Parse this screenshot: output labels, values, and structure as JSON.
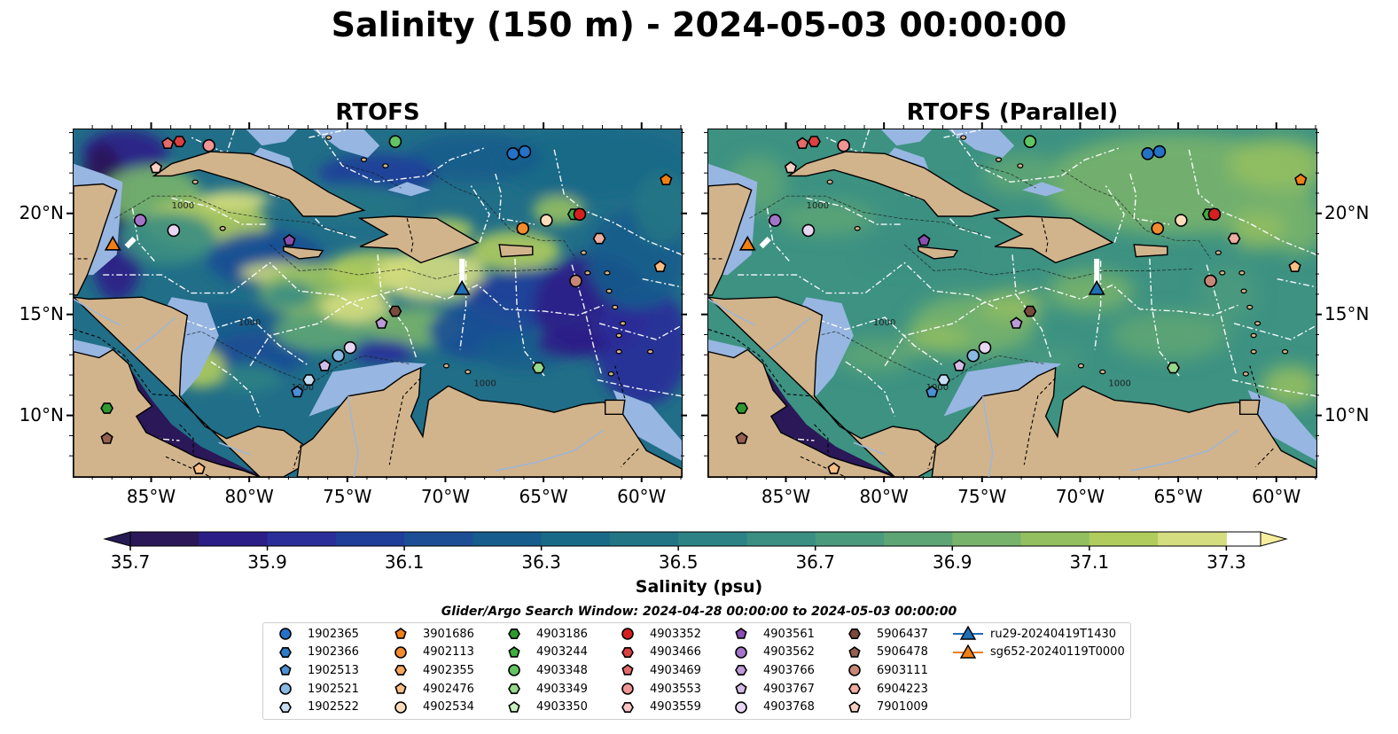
{
  "title": "Salinity (150 m) - 2024-05-03 00:00:00",
  "panels": [
    {
      "title": "RTOFS",
      "variant": "rtofs"
    },
    {
      "title": "RTOFS (Parallel)",
      "variant": "parallel"
    }
  ],
  "map": {
    "lon_range": [
      -89.0,
      -58.0
    ],
    "lat_range": [
      7.0,
      24.2
    ],
    "lon_ticks": [
      "85°W",
      "80°W",
      "75°W",
      "70°W",
      "65°W",
      "60°W"
    ],
    "lat_ticks": [
      "20°N",
      "15°N",
      "10°N"
    ],
    "contour_label": "1000",
    "colors": {
      "ocean_shelf": "#97b6e1",
      "land": "#d2b48c",
      "eez_line": "#ffffff",
      "coast": "#000000"
    }
  },
  "colorbar": {
    "label": "Salinity (psu)",
    "ticks": [
      "35.7",
      "35.9",
      "36.1",
      "36.3",
      "36.5",
      "36.7",
      "36.9",
      "37.1",
      "37.3"
    ],
    "min": 35.7,
    "max": 37.35,
    "step": 0.1,
    "colors": [
      "#2a1858",
      "#2b1e87",
      "#2a2e99",
      "#1f3e9a",
      "#1b4e95",
      "#165c8c",
      "#196a87",
      "#217585",
      "#2c8284",
      "#3a8e82",
      "#4a9a7e",
      "#5ea576",
      "#78b36c",
      "#93bf60",
      "#b0cc5c",
      "#d4dd80"
    ],
    "extend_low_color": "#261b52",
    "extend_high_color": "#f6ee9d"
  },
  "search_window": "Glider/Argo Search Window: 2024-04-28 00:00:00 to 2024-05-03 00:00:00",
  "legend": [
    {
      "id": "1902365",
      "marker": "circle",
      "color": "#2472c8"
    },
    {
      "id": "1902366",
      "marker": "hexagon",
      "color": "#2d7cc8"
    },
    {
      "id": "1902513",
      "marker": "pentagon",
      "color": "#4b8fd6"
    },
    {
      "id": "1902521",
      "marker": "circle",
      "color": "#8ab9e2"
    },
    {
      "id": "1902522",
      "marker": "hexagon",
      "color": "#c6dcf2"
    },
    {
      "id": "3901686",
      "marker": "pentagon",
      "color": "#f07f14"
    },
    {
      "id": "4902113",
      "marker": "circle",
      "color": "#f28a2e"
    },
    {
      "id": "4902355",
      "marker": "hexagon",
      "color": "#f6a55c"
    },
    {
      "id": "4902476",
      "marker": "pentagon",
      "color": "#f8be86"
    },
    {
      "id": "4902534",
      "marker": "circle",
      "color": "#fddcbc"
    },
    {
      "id": "4903186",
      "marker": "hexagon",
      "color": "#2e9a2e"
    },
    {
      "id": "4903244",
      "marker": "pentagon",
      "color": "#3fae3f"
    },
    {
      "id": "4903348",
      "marker": "circle",
      "color": "#63c463"
    },
    {
      "id": "4903349",
      "marker": "hexagon",
      "color": "#96d98a"
    },
    {
      "id": "4903350",
      "marker": "pentagon",
      "color": "#c7efbf"
    },
    {
      "id": "4903352",
      "marker": "circle",
      "color": "#d62020"
    },
    {
      "id": "4903466",
      "marker": "hexagon",
      "color": "#dc4040"
    },
    {
      "id": "4903469",
      "marker": "pentagon",
      "color": "#e66a6a"
    },
    {
      "id": "4903553",
      "marker": "circle",
      "color": "#f09494"
    },
    {
      "id": "4903559",
      "marker": "hexagon",
      "color": "#f8c4c4"
    },
    {
      "id": "4903561",
      "marker": "pentagon",
      "color": "#8a4fb0"
    },
    {
      "id": "4903562",
      "marker": "circle",
      "color": "#a275c8"
    },
    {
      "id": "4903766",
      "marker": "hexagon",
      "color": "#bd9ad8"
    },
    {
      "id": "4903767",
      "marker": "pentagon",
      "color": "#d3bde6"
    },
    {
      "id": "4903768",
      "marker": "circle",
      "color": "#e8d6f2"
    },
    {
      "id": "5906437",
      "marker": "hexagon",
      "color": "#7a4a3a"
    },
    {
      "id": "5906478",
      "marker": "pentagon",
      "color": "#946050"
    },
    {
      "id": "6903111",
      "marker": "circle",
      "color": "#c88676"
    },
    {
      "id": "6904223",
      "marker": "hexagon",
      "color": "#eeaea0"
    },
    {
      "id": "7901009",
      "marker": "pentagon",
      "color": "#f8cfc4"
    },
    {
      "id": "ru29-20240419T1430",
      "marker": "triangle-line",
      "color": "#1f6fb8"
    },
    {
      "id": "sg652-20240119T0000",
      "marker": "triangle-line",
      "color": "#f07f14"
    }
  ],
  "floats": [
    {
      "lon": -84.2,
      "lat": 23.5,
      "marker": "pentagon",
      "color": "#e66a6a"
    },
    {
      "lon": -83.6,
      "lat": 23.6,
      "marker": "hexagon",
      "color": "#dc4040"
    },
    {
      "lon": -82.1,
      "lat": 23.4,
      "marker": "circle",
      "color": "#f09494"
    },
    {
      "lon": -84.8,
      "lat": 22.3,
      "marker": "pentagon",
      "color": "#f8cfc4"
    },
    {
      "lon": -72.6,
      "lat": 23.6,
      "marker": "circle",
      "color": "#63c463"
    },
    {
      "lon": -66.6,
      "lat": 23.0,
      "marker": "circle",
      "color": "#2472c8"
    },
    {
      "lon": -66.0,
      "lat": 23.1,
      "marker": "circle",
      "color": "#2472c8"
    },
    {
      "lon": -58.8,
      "lat": 21.7,
      "marker": "pentagon",
      "color": "#f07f14"
    },
    {
      "lon": -85.6,
      "lat": 19.7,
      "marker": "circle",
      "color": "#a275c8"
    },
    {
      "lon": -83.9,
      "lat": 19.2,
      "marker": "circle",
      "color": "#e8d6f2"
    },
    {
      "lon": -78.0,
      "lat": 18.7,
      "marker": "pentagon",
      "color": "#8a4fb0"
    },
    {
      "lon": -64.9,
      "lat": 19.7,
      "marker": "circle",
      "color": "#fddcbc"
    },
    {
      "lon": -63.5,
      "lat": 20.0,
      "marker": "hexagon",
      "color": "#3fae3f"
    },
    {
      "lon": -63.2,
      "lat": 20.0,
      "marker": "circle",
      "color": "#d62020"
    },
    {
      "lon": -66.1,
      "lat": 19.3,
      "marker": "circle",
      "color": "#f28a2e"
    },
    {
      "lon": -62.2,
      "lat": 18.8,
      "marker": "hexagon",
      "color": "#eeaea0"
    },
    {
      "lon": -59.1,
      "lat": 17.4,
      "marker": "pentagon",
      "color": "#f8be86"
    },
    {
      "lon": -63.4,
      "lat": 16.7,
      "marker": "circle",
      "color": "#c88676"
    },
    {
      "lon": -72.6,
      "lat": 15.2,
      "marker": "hexagon",
      "color": "#7a4a3a"
    },
    {
      "lon": -73.3,
      "lat": 14.6,
      "marker": "pentagon",
      "color": "#bd9ad8"
    },
    {
      "lon": -74.9,
      "lat": 13.4,
      "marker": "circle",
      "color": "#e8d6f2"
    },
    {
      "lon": -75.5,
      "lat": 13.0,
      "marker": "circle",
      "color": "#8ab9e2"
    },
    {
      "lon": -76.2,
      "lat": 12.5,
      "marker": "pentagon",
      "color": "#d3bde6"
    },
    {
      "lon": -77.0,
      "lat": 11.8,
      "marker": "hexagon",
      "color": "#c6dcf2"
    },
    {
      "lon": -77.6,
      "lat": 11.2,
      "marker": "pentagon",
      "color": "#4b8fd6"
    },
    {
      "lon": -65.3,
      "lat": 12.4,
      "marker": "hexagon",
      "color": "#96d98a"
    },
    {
      "lon": -87.3,
      "lat": 10.4,
      "marker": "hexagon",
      "color": "#2e9a2e"
    },
    {
      "lon": -87.3,
      "lat": 8.9,
      "marker": "pentagon",
      "color": "#946050"
    },
    {
      "lon": -82.6,
      "lat": 7.4,
      "marker": "pentagon",
      "color": "#f8be86"
    }
  ],
  "gliders": [
    {
      "lon": -69.2,
      "lat": 16.3,
      "color": "#1f6fb8",
      "track": [
        [
          -69.2,
          17.8
        ],
        [
          -69.2,
          16.5
        ]
      ]
    },
    {
      "lon": -87.0,
      "lat": 18.5,
      "color": "#f07f14",
      "track": [
        [
          -86.3,
          18.4
        ],
        [
          -85.9,
          18.8
        ]
      ]
    }
  ]
}
